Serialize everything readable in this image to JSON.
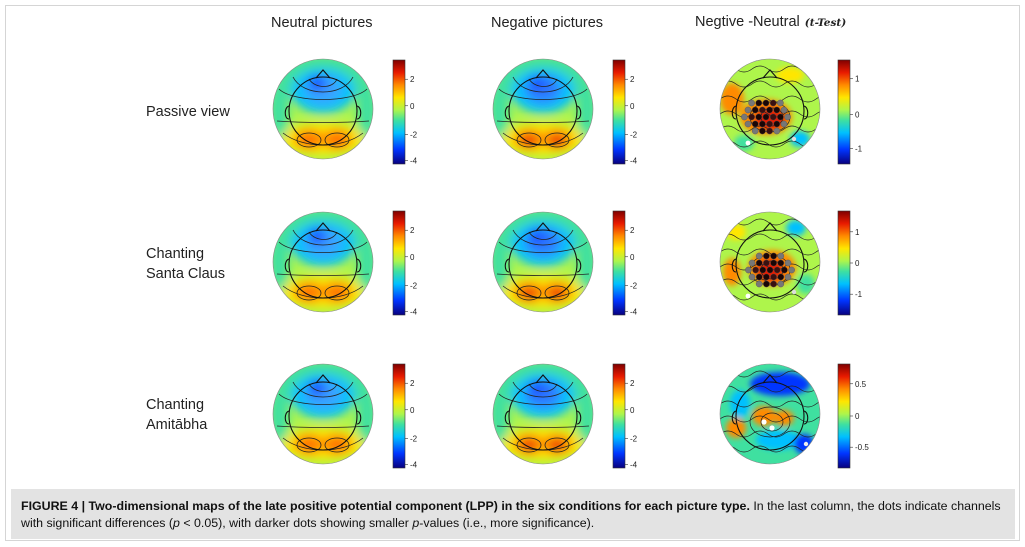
{
  "columns": [
    "Neutral pictures",
    "Negative pictures",
    "Negtive -Neutral"
  ],
  "column_suffix": "(t-Test)",
  "rows": [
    {
      "lines": [
        "Passive view"
      ]
    },
    {
      "lines": [
        "Chanting",
        "Santa Claus"
      ]
    },
    {
      "lines": [
        "Chanting",
        "Amitābha"
      ]
    }
  ],
  "colorbar_ticks": {
    "standard": [
      "2",
      "0",
      "-2",
      "-4"
    ],
    "ttest_row1": [
      "1",
      "0",
      "-1"
    ],
    "ttest_row2": [
      "1",
      "0",
      "-1"
    ],
    "ttest_row3": [
      "0.5",
      "0",
      "-0.5"
    ]
  },
  "colormap": [
    "#08007f",
    "#0035ff",
    "#00c0ff",
    "#3fe0a0",
    "#aef54b",
    "#ffe600",
    "#ff8a00",
    "#e81a00",
    "#7f0000"
  ],
  "caption": {
    "figure_label": "FIGURE 4 |",
    "title": "Two-dimensional maps of the late positive potential component (LPP) in the six conditions for each picture type.",
    "text_1": "In the last column, the dots indicate channels with significant differences (",
    "p_symbol": "p",
    "text_2": "< 0.05), with darker dots showing smaller",
    "text_3": "-values (i.e., more significance)."
  }
}
